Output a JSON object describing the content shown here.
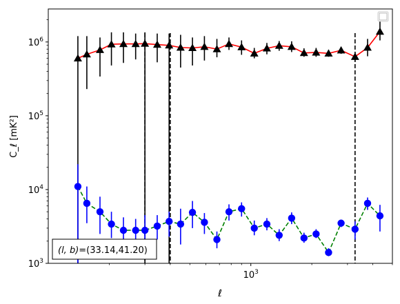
{
  "chart_data": {
    "type": "scatter",
    "xlabel": "ℓ",
    "ylabel": "C_ℓ [mK²]",
    "xscale": "log",
    "yscale": "log",
    "xlim": [
      100,
      5000
    ],
    "ylim": [
      1000,
      2800000
    ],
    "x_ticks": [
      {
        "value": 1000,
        "base": "10",
        "exp": "3"
      }
    ],
    "y_ticks": [
      {
        "value": 1000,
        "base": "10",
        "exp": "3"
      },
      {
        "value": 10000,
        "base": "10",
        "exp": "4"
      },
      {
        "value": 100000,
        "base": "10",
        "exp": "5"
      },
      {
        "value": 1000000,
        "base": "10",
        "exp": "6"
      }
    ],
    "vlines": [
      300,
      400,
      3270
    ],
    "annotation": {
      "lhs": "(l, b)",
      "rhs": "=(33.14,41.20)"
    },
    "legend": {
      "position": "top-right",
      "entries": []
    },
    "colors": {
      "black_series": "#000000",
      "black_line": "#ff0000",
      "blue_series": "#0000ff",
      "blue_line": "#008000"
    },
    "series": [
      {
        "marker": "triangle",
        "line": "solid",
        "points": [
          {
            "x": 140,
            "y": 600000,
            "lo": 1000,
            "hi": 1200000
          },
          {
            "x": 155,
            "y": 680000,
            "lo": 230000,
            "hi": 1200000
          },
          {
            "x": 180,
            "y": 780000,
            "lo": 340000,
            "hi": 1150000
          },
          {
            "x": 205,
            "y": 930000,
            "lo": 480000,
            "hi": 1350000
          },
          {
            "x": 235,
            "y": 940000,
            "lo": 520000,
            "hi": 1350000
          },
          {
            "x": 270,
            "y": 940000,
            "lo": 580000,
            "hi": 1300000
          },
          {
            "x": 300,
            "y": 950000,
            "lo": 1000,
            "hi": 1350000
          },
          {
            "x": 345,
            "y": 920000,
            "lo": 530000,
            "hi": 1300000
          },
          {
            "x": 395,
            "y": 900000,
            "lo": 1000,
            "hi": 1300000
          },
          {
            "x": 450,
            "y": 840000,
            "lo": 450000,
            "hi": 1250000
          },
          {
            "x": 515,
            "y": 830000,
            "lo": 480000,
            "hi": 1150000
          },
          {
            "x": 590,
            "y": 860000,
            "lo": 560000,
            "hi": 1200000
          },
          {
            "x": 680,
            "y": 800000,
            "lo": 620000,
            "hi": 1100000
          },
          {
            "x": 780,
            "y": 940000,
            "lo": 780000,
            "hi": 1150000
          },
          {
            "x": 900,
            "y": 850000,
            "lo": 670000,
            "hi": 1050000
          },
          {
            "x": 1040,
            "y": 700000,
            "lo": 600000,
            "hi": 830000
          },
          {
            "x": 1200,
            "y": 820000,
            "lo": 680000,
            "hi": 970000
          },
          {
            "x": 1380,
            "y": 890000,
            "lo": 760000,
            "hi": 1030000
          },
          {
            "x": 1590,
            "y": 860000,
            "lo": 730000,
            "hi": 1020000
          },
          {
            "x": 1830,
            "y": 710000,
            "lo": 630000,
            "hi": 820000
          },
          {
            "x": 2100,
            "y": 720000,
            "lo": 630000,
            "hi": 830000
          },
          {
            "x": 2420,
            "y": 700000,
            "lo": 630000,
            "hi": 780000
          },
          {
            "x": 2790,
            "y": 770000,
            "lo": 690000,
            "hi": 860000
          },
          {
            "x": 3270,
            "y": 630000,
            "lo": 540000,
            "hi": 730000
          },
          {
            "x": 3770,
            "y": 840000,
            "lo": 640000,
            "hi": 1100000
          },
          {
            "x": 4340,
            "y": 1380000,
            "lo": 1050000,
            "hi": 1900000
          }
        ]
      },
      {
        "marker": "circle",
        "line": "dashed",
        "points": [
          {
            "x": 140,
            "y": 11000,
            "lo": 1000,
            "hi": 22000
          },
          {
            "x": 155,
            "y": 6500,
            "lo": 3500,
            "hi": 11000
          },
          {
            "x": 180,
            "y": 5000,
            "lo": 2500,
            "hi": 8000
          },
          {
            "x": 205,
            "y": 3400,
            "lo": 2200,
            "hi": 5000
          },
          {
            "x": 235,
            "y": 2800,
            "lo": 1800,
            "hi": 4200
          },
          {
            "x": 270,
            "y": 2800,
            "lo": 1900,
            "hi": 4000
          },
          {
            "x": 300,
            "y": 2800,
            "lo": 1600,
            "hi": 4500
          },
          {
            "x": 345,
            "y": 3200,
            "lo": 2100,
            "hi": 4500
          },
          {
            "x": 395,
            "y": 3700,
            "lo": 2300,
            "hi": 5000
          },
          {
            "x": 450,
            "y": 3400,
            "lo": 1800,
            "hi": 5500
          },
          {
            "x": 515,
            "y": 4900,
            "lo": 3000,
            "hi": 7000
          },
          {
            "x": 590,
            "y": 3600,
            "lo": 2500,
            "hi": 4800
          },
          {
            "x": 680,
            "y": 2100,
            "lo": 1600,
            "hi": 2700
          },
          {
            "x": 780,
            "y": 5000,
            "lo": 3800,
            "hi": 6300
          },
          {
            "x": 900,
            "y": 5500,
            "lo": 4300,
            "hi": 6700
          },
          {
            "x": 1040,
            "y": 3000,
            "lo": 2400,
            "hi": 3800
          },
          {
            "x": 1200,
            "y": 3400,
            "lo": 2800,
            "hi": 4100
          },
          {
            "x": 1380,
            "y": 2400,
            "lo": 2000,
            "hi": 2900
          },
          {
            "x": 1590,
            "y": 4100,
            "lo": 3400,
            "hi": 4900
          },
          {
            "x": 1830,
            "y": 2200,
            "lo": 1900,
            "hi": 2600
          },
          {
            "x": 2100,
            "y": 2500,
            "lo": 2200,
            "hi": 2900
          },
          {
            "x": 2420,
            "y": 1400,
            "lo": 1250,
            "hi": 1600
          },
          {
            "x": 2790,
            "y": 3500,
            "lo": 3100,
            "hi": 3900
          },
          {
            "x": 3270,
            "y": 2900,
            "lo": 2100,
            "hi": 3700
          },
          {
            "x": 3770,
            "y": 6500,
            "lo": 5300,
            "hi": 7800
          },
          {
            "x": 4340,
            "y": 4400,
            "lo": 2700,
            "hi": 6200
          }
        ]
      }
    ]
  }
}
